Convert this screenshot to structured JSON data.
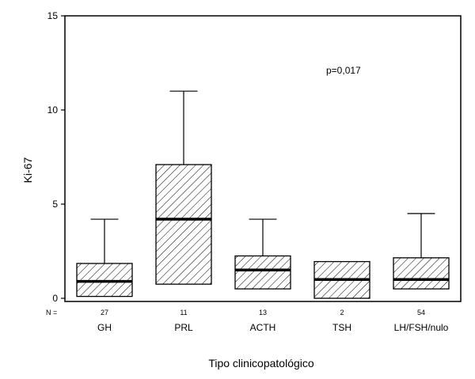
{
  "chart_data": {
    "type": "box",
    "xlabel": "Tipo clinicopatológico",
    "ylabel": "Ki-67",
    "ylim": [
      0,
      15
    ],
    "yticks": [
      "0",
      "5",
      "10",
      "15"
    ],
    "n_label": "N =",
    "annotation": "p=0,017",
    "grid": false,
    "categories": [
      {
        "name": "GH",
        "n": "27",
        "q1": 0.1,
        "median": 0.9,
        "q3": 1.85,
        "whisker_low": 0.1,
        "whisker_high": 4.2
      },
      {
        "name": "PRL",
        "n": "11",
        "q1": 0.75,
        "median": 4.2,
        "q3": 7.1,
        "whisker_low": 0.75,
        "whisker_high": 11.0
      },
      {
        "name": "ACTH",
        "n": "13",
        "q1": 0.5,
        "median": 1.5,
        "q3": 2.25,
        "whisker_low": 0.5,
        "whisker_high": 4.2
      },
      {
        "name": "TSH",
        "n": "2",
        "q1": 0.0,
        "median": 1.0,
        "q3": 1.95,
        "whisker_low": 0.0,
        "whisker_high": 1.95
      },
      {
        "name": "LH/FSH/nulo",
        "n": "54",
        "q1": 0.5,
        "median": 1.0,
        "q3": 2.15,
        "whisker_low": 0.5,
        "whisker_high": 4.5
      }
    ]
  }
}
